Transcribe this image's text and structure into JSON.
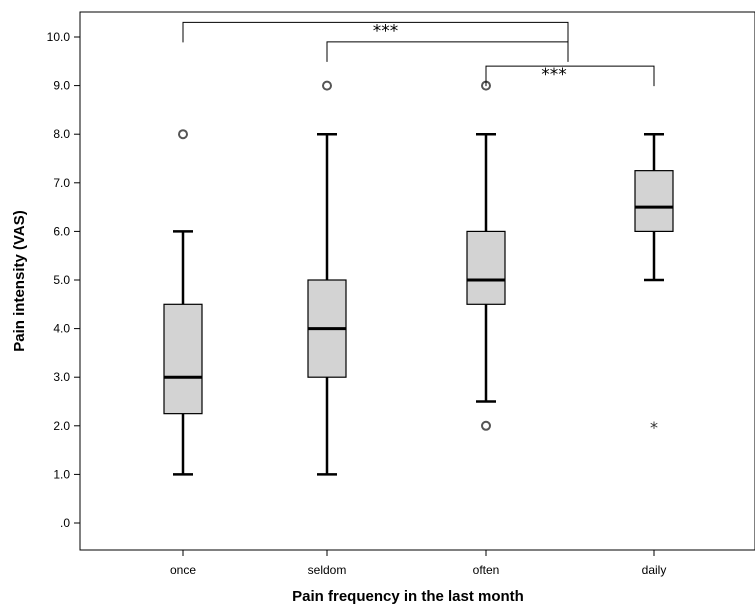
{
  "chart_data": {
    "type": "box",
    "title": "",
    "xlabel": "Pain frequency in the last month",
    "ylabel": "Pain intensity (VAS)",
    "ylim": [
      -0.6,
      10.5
    ],
    "yticks": [
      0,
      1,
      2,
      3,
      4,
      5,
      6,
      7,
      8,
      9,
      10
    ],
    "ytick_labels": [
      ".0",
      "1.0",
      "2.0",
      "3.0",
      "4.0",
      "5.0",
      "6.0",
      "7.0",
      "8.0",
      "9.0",
      "10.0"
    ],
    "grid": false,
    "categories": [
      "once",
      "seldom",
      "often",
      "daily"
    ],
    "boxes": [
      {
        "category": "once",
        "whisker_low": 1.0,
        "q1": 2.25,
        "median": 3.0,
        "q3": 4.5,
        "whisker_high": 6.0,
        "outliers": [
          {
            "value": 8.0,
            "marker": "circle"
          }
        ]
      },
      {
        "category": "seldom",
        "whisker_low": 1.0,
        "q1": 3.0,
        "median": 4.0,
        "q3": 5.0,
        "whisker_high": 8.0,
        "outliers": [
          {
            "value": 9.0,
            "marker": "circle"
          }
        ]
      },
      {
        "category": "often",
        "whisker_low": 2.5,
        "q1": 4.5,
        "median": 5.0,
        "q3": 6.0,
        "whisker_high": 8.0,
        "outliers": [
          {
            "value": 9.0,
            "marker": "circle"
          },
          {
            "value": 2.0,
            "marker": "circle"
          }
        ]
      },
      {
        "category": "daily",
        "whisker_low": 5.0,
        "q1": 6.0,
        "median": 6.5,
        "q3": 7.25,
        "whisker_high": 8.0,
        "outliers": [
          {
            "value": 2.0,
            "marker": "star"
          }
        ]
      }
    ],
    "significance": [
      {
        "from": "once",
        "to": "often",
        "label": "***",
        "level": 10.3
      },
      {
        "from": "seldom",
        "to": "often",
        "label": "",
        "level": 9.9
      },
      {
        "from": "often",
        "to": "daily",
        "label": "***",
        "level": 9.4
      }
    ],
    "box_fill": "#d3d3d3",
    "line_color": "#000000",
    "outlier_color": "#555555"
  }
}
